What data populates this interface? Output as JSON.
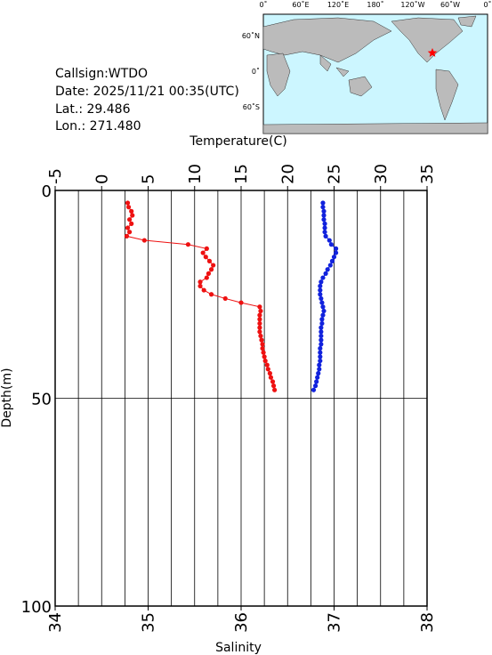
{
  "info": {
    "callsign": "Callsign:WTDO",
    "date": "Date:  2025/11/21 00:35(UTC)",
    "lat": "Lat.:  29.486",
    "lon": "Lon.:  271.480"
  },
  "map": {
    "top_labels": [
      "0˚",
      "60˚E",
      "120˚E",
      "180˚",
      "120˚W",
      "60˚W",
      "0˚"
    ],
    "left_labels": [
      "60˚N",
      "0˚",
      "60˚S"
    ]
  },
  "chart_data": {
    "type": "profile",
    "xlabel": "Temperature(C)",
    "xlim": [
      -5,
      35
    ],
    "xticks": [
      -5,
      0,
      5,
      10,
      15,
      20,
      25,
      30,
      35
    ],
    "xgrid": [
      -5,
      -2.5,
      0,
      2.5,
      5,
      7.5,
      10,
      12.5,
      15,
      17.5,
      20,
      22.5,
      25,
      27.5,
      30,
      32.5,
      35
    ],
    "x2label": "Salinity",
    "x2lim": [
      34,
      38
    ],
    "x2ticks": [
      34,
      35,
      36,
      37,
      38
    ],
    "ylabel": "Depth(m)",
    "ylim": [
      0,
      100
    ],
    "yticks": [
      0,
      50,
      100
    ],
    "grid": true,
    "y": [
      3,
      4,
      5,
      6,
      7,
      8,
      9,
      10,
      11,
      12,
      13,
      14,
      15,
      16,
      17,
      18,
      19,
      20,
      21,
      22,
      23,
      24,
      25,
      26,
      27,
      28,
      29,
      30,
      31,
      32,
      33,
      34,
      35,
      36,
      37,
      38,
      39,
      40,
      41,
      42,
      43,
      44,
      45,
      46,
      47,
      48
    ],
    "series": [
      {
        "color": "#ee1111",
        "axis": "x",
        "values": [
          2.8,
          2.9,
          3.2,
          3.3,
          3.0,
          3.2,
          2.8,
          3.0,
          2.7,
          4.6,
          9.3,
          11.3,
          10.9,
          11.2,
          11.6,
          12.0,
          11.8,
          11.5,
          11.3,
          10.6,
          10.6,
          11.0,
          11.8,
          13.3,
          15.0,
          17.0,
          17.1,
          17.0,
          17.0,
          17.0,
          17.0,
          17.0,
          17.1,
          17.2,
          17.3,
          17.3,
          17.4,
          17.5,
          17.6,
          17.8,
          17.9,
          18.1,
          18.2,
          18.4,
          18.5,
          18.6
        ]
      },
      {
        "color": "#1122dd",
        "axis": "x2",
        "values": [
          36.88,
          36.88,
          36.89,
          36.89,
          36.89,
          36.9,
          36.9,
          36.9,
          36.91,
          36.95,
          36.97,
          37.02,
          37.02,
          37.0,
          36.98,
          36.96,
          36.93,
          36.91,
          36.88,
          36.86,
          36.85,
          36.85,
          36.85,
          36.86,
          36.87,
          36.88,
          36.89,
          36.88,
          36.87,
          36.87,
          36.86,
          36.86,
          36.86,
          36.86,
          36.86,
          36.85,
          36.85,
          36.85,
          36.85,
          36.84,
          36.84,
          36.83,
          36.82,
          36.81,
          36.8,
          36.78
        ]
      }
    ]
  }
}
